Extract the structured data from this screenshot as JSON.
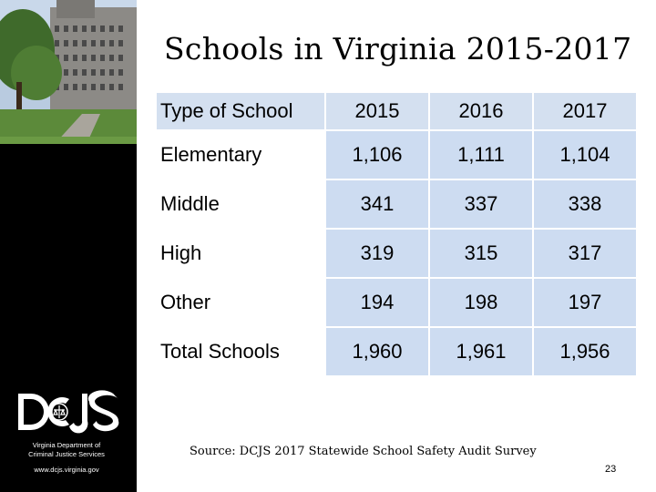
{
  "title": "Schools in Virginia 2015-2017",
  "sidebar": {
    "org_line1": "Virginia Department of",
    "org_line2": "Criminal Justice Services",
    "url": "www.dcjs.virginia.gov",
    "logo_text": "DCJS"
  },
  "table": {
    "header": [
      "Type of School",
      "2015",
      "2016",
      "2017"
    ],
    "rows": [
      [
        "Elementary",
        "1,106",
        "1,111",
        "1,104"
      ],
      [
        "Middle",
        "341",
        "337",
        "338"
      ],
      [
        "High",
        "319",
        "315",
        "317"
      ],
      [
        "Other",
        "194",
        "198",
        "197"
      ],
      [
        "Total Schools",
        "1,960",
        "1,961",
        "1,956"
      ]
    ]
  },
  "source": "Source: DCJS 2017 Statewide School Safety Audit Survey",
  "page_number": "23",
  "colors": {
    "header_fill": "#d4e0f0",
    "cell_fill": "#cddcf1",
    "sidebar": "#000000"
  }
}
